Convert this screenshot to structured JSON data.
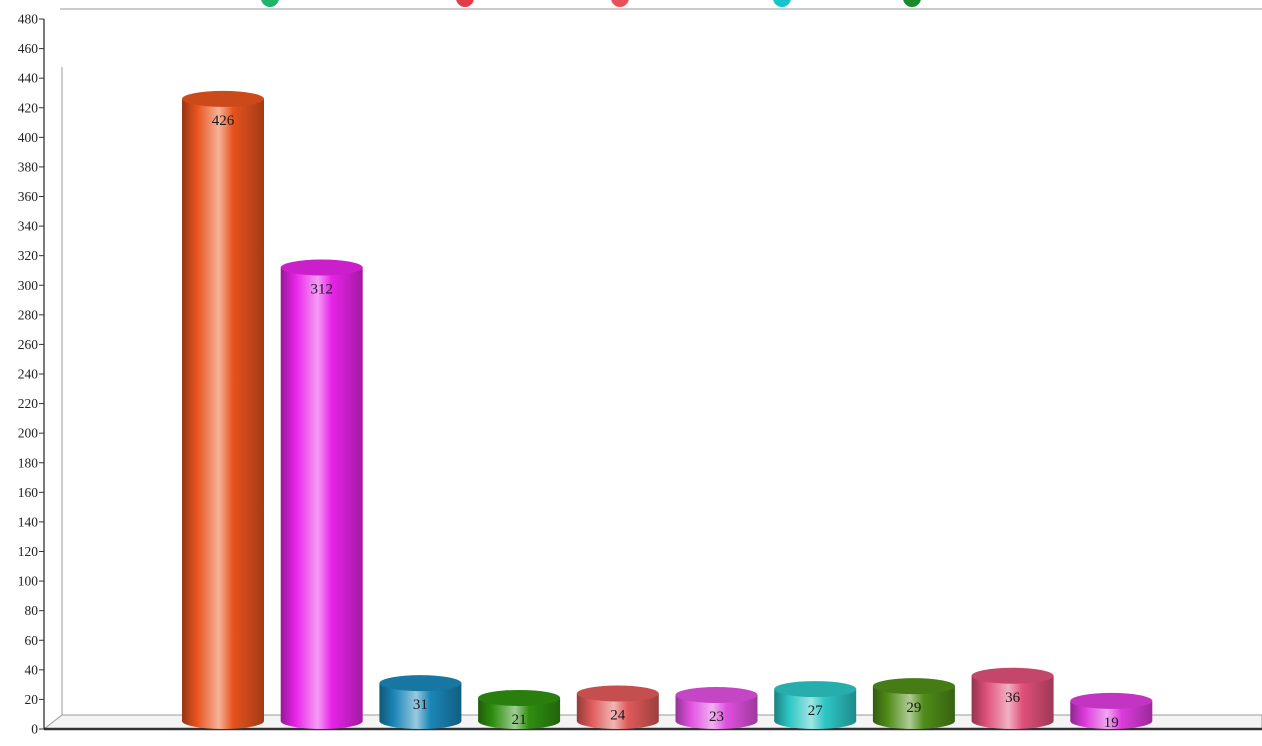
{
  "chart_data": {
    "type": "bar",
    "title": "",
    "xlabel": "",
    "ylabel": "",
    "ylim": [
      0,
      480
    ],
    "y_tick_step": 20,
    "grid": false,
    "legend": "top (partially visible, cut off)",
    "categories": [
      "",
      "",
      "",
      "",
      "",
      "",
      "",
      "",
      "",
      ""
    ],
    "values": [
      426,
      312,
      31,
      21,
      24,
      23,
      27,
      29,
      36,
      19
    ],
    "data_labels": [
      "426",
      "312",
      "31",
      "21",
      "24",
      "23",
      "27",
      "29",
      "36",
      "19"
    ],
    "bar_colors": [
      "#e8531e",
      "#e823e8",
      "#1a86b8",
      "#2f8f10",
      "#e05a5a",
      "#e050e0",
      "#2cc6c4",
      "#4f8c18",
      "#e0507a",
      "#de3bde"
    ],
    "legend_marker_colors": [
      "#21b36b",
      "#e23b4b",
      "#e8505a",
      "#18c4cc",
      "#1b8a2c"
    ]
  }
}
